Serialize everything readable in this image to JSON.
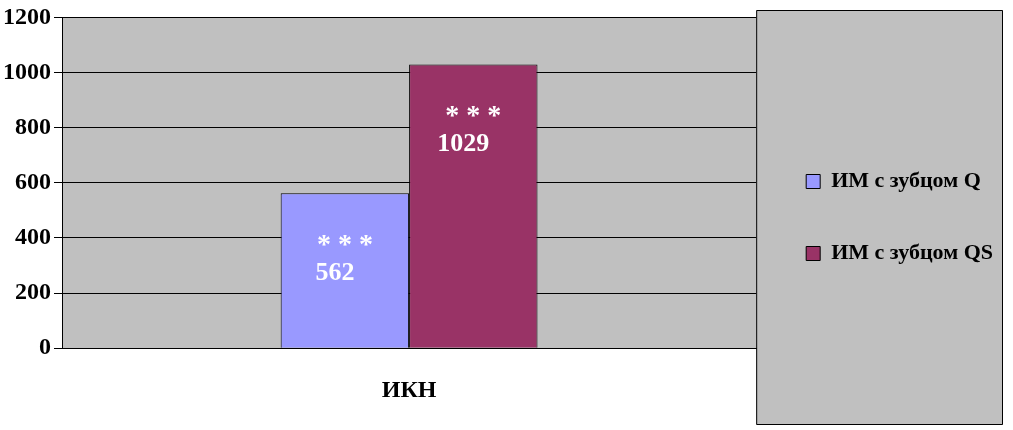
{
  "chart_data": {
    "type": "bar",
    "categories": [
      "ИКН"
    ],
    "series": [
      {
        "name": "ИМ с зубцом Q",
        "color": "#9999ff",
        "values": [
          562
        ]
      },
      {
        "name": "ИМ с зубцом QS",
        "color": "#993366",
        "values": [
          1029
        ]
      }
    ],
    "ylim": [
      0,
      1200
    ],
    "yticks": [
      0,
      200,
      400,
      600,
      800,
      1000,
      1200
    ],
    "grid": "y",
    "legend": "right",
    "data_labels": true,
    "annotations": [
      "* * *",
      "* * *"
    ]
  }
}
